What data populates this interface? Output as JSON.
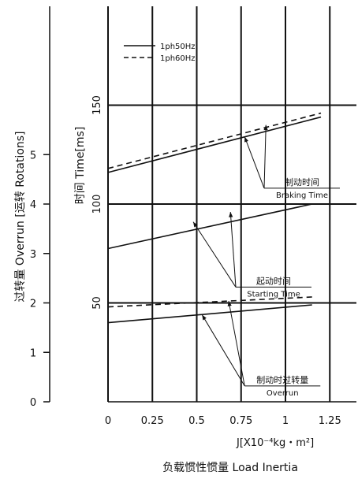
{
  "chart_data": {
    "type": "line",
    "xlabel": "负载惯性惯量 Load Inertia",
    "x_unit_label": "J[X10⁻⁴kg・m²]",
    "ylabel": "时间 Time[ms]",
    "y2label": "过转量 Overrun [运转 Rotations]",
    "xlim": [
      0,
      1.4
    ],
    "ylim": [
      0,
      200
    ],
    "y2lim": [
      0,
      8
    ],
    "x_ticks": [
      0,
      0.25,
      0.5,
      0.75,
      1,
      1.25
    ],
    "x_tick_labels": [
      "0",
      "0.25",
      "0.5",
      "0.75",
      "1",
      "1.25"
    ],
    "y_ticks": [
      50,
      100,
      150
    ],
    "y_tick_labels": [
      "50",
      "100",
      "150"
    ],
    "y2_ticks": [
      0,
      1,
      2,
      3,
      4,
      5
    ],
    "y2_tick_labels": [
      "0",
      "1",
      "2",
      "3",
      "4",
      "5"
    ],
    "grid": true,
    "legend_position": "top-left",
    "legend": [
      {
        "label": "1ph50Hz",
        "style": "solid"
      },
      {
        "label": "1ph60Hz",
        "style": "dashed"
      }
    ],
    "series": [
      {
        "group": "braking",
        "freq": "1ph50Hz",
        "style": "solid",
        "x": [
          0,
          1.2
        ],
        "y": [
          116,
          144
        ]
      },
      {
        "group": "braking",
        "freq": "1ph60Hz",
        "style": "dashed",
        "x": [
          0,
          1.2
        ],
        "y": [
          118,
          146
        ]
      },
      {
        "group": "starting",
        "freq": "1ph50Hz",
        "style": "solid",
        "x": [
          0,
          1.15
        ],
        "y": [
          77.5,
          100
        ]
      },
      {
        "group": "overrun",
        "freq": "1ph50Hz",
        "style": "solid",
        "x": [
          0,
          1.15
        ],
        "y": [
          40,
          49
        ]
      },
      {
        "group": "overrun",
        "freq": "1ph60Hz",
        "style": "dashed",
        "x": [
          0,
          1.15
        ],
        "y": [
          48,
          53
        ]
      }
    ],
    "annotations": [
      {
        "cn": "制动时间",
        "en": "Braking Time",
        "anchor_x": 0.88,
        "anchor_y": 108,
        "targets": [
          [
            0.77,
            134
          ],
          [
            0.89,
            140
          ]
        ]
      },
      {
        "cn": "起动时间",
        "en": "Starting Time",
        "anchor_x": 0.72,
        "anchor_y": 58,
        "targets": [
          [
            0.48,
            91
          ],
          [
            0.69,
            96
          ]
        ]
      },
      {
        "cn": "制动时过转量",
        "en": "Overrun",
        "anchor_x": 0.77,
        "anchor_y": 8,
        "targets": [
          [
            0.53,
            44
          ],
          [
            0.68,
            51
          ]
        ]
      }
    ]
  }
}
